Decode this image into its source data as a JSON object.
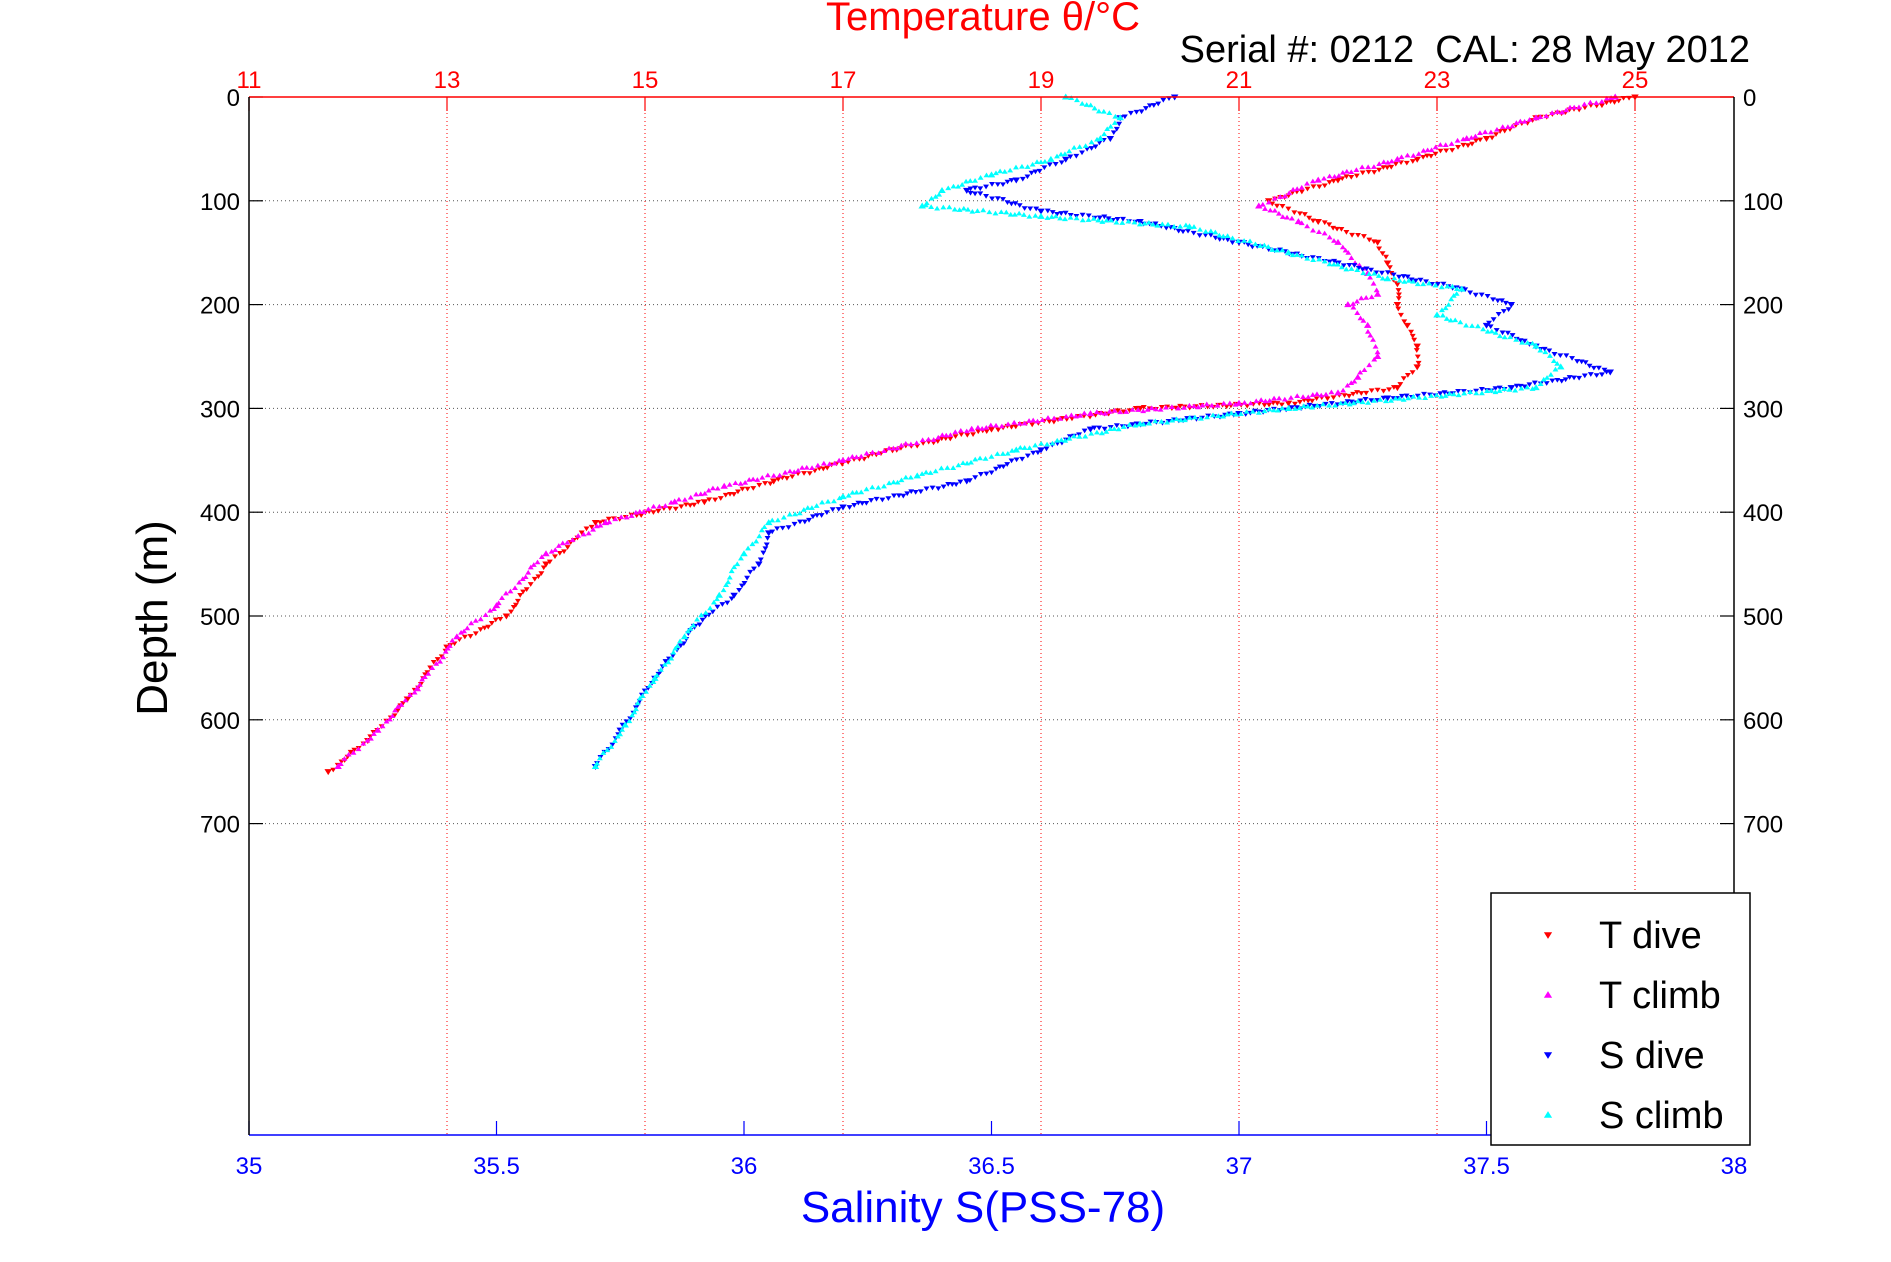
{
  "chart_data": {
    "type": "scatter",
    "title": "Temperature θ/°C",
    "subtitle": "Serial #: 0212  CAL: 28 May 2012",
    "xlabel": "Salinity S(PSS-78)",
    "ylabel": "Depth (m)",
    "ylim": [
      0,
      1000
    ],
    "ylim_reversed": true,
    "y_ticks": [
      "0",
      "100",
      "200",
      "300",
      "400",
      "500",
      "600",
      "700"
    ],
    "temperature_axis": {
      "position": "top",
      "xlim": [
        11,
        26
      ],
      "ticks": [
        "11",
        "13",
        "15",
        "17",
        "19",
        "21",
        "23",
        "25"
      ],
      "grid": true,
      "color": "#ff0000"
    },
    "salinity_axis": {
      "position": "bottom",
      "xlim": [
        35,
        38
      ],
      "ticks": [
        "35",
        "35.5",
        "36",
        "36.5",
        "37",
        "37.5",
        "38"
      ],
      "color": "#0000ff"
    },
    "depth_grid": true,
    "legend_position": "bottom-right",
    "series": [
      {
        "name": "T dive",
        "axis": "temperature",
        "color": "#ff0000",
        "marker": "triangle-down",
        "points": [
          [
            25.0,
            0
          ],
          [
            24.0,
            20
          ],
          [
            23.5,
            40
          ],
          [
            22.8,
            60
          ],
          [
            22.0,
            80
          ],
          [
            21.3,
            100
          ],
          [
            21.8,
            120
          ],
          [
            22.4,
            140
          ],
          [
            22.5,
            160
          ],
          [
            22.6,
            180
          ],
          [
            22.6,
            200
          ],
          [
            22.7,
            220
          ],
          [
            22.8,
            240
          ],
          [
            22.8,
            260
          ],
          [
            22.6,
            280
          ],
          [
            21.5,
            295
          ],
          [
            20.0,
            300
          ],
          [
            18.5,
            320
          ],
          [
            17.5,
            340
          ],
          [
            16.3,
            370
          ],
          [
            15.6,
            390
          ],
          [
            14.5,
            410
          ],
          [
            14.0,
            450
          ],
          [
            13.6,
            500
          ],
          [
            13.0,
            530
          ],
          [
            12.6,
            580
          ],
          [
            12.2,
            620
          ],
          [
            11.8,
            650
          ]
        ]
      },
      {
        "name": "T climb",
        "axis": "temperature",
        "color": "#ff00ff",
        "marker": "triangle-up",
        "points": [
          [
            24.8,
            0
          ],
          [
            24.0,
            20
          ],
          [
            23.3,
            40
          ],
          [
            22.6,
            60
          ],
          [
            21.8,
            80
          ],
          [
            21.2,
            105
          ],
          [
            21.6,
            120
          ],
          [
            22.0,
            140
          ],
          [
            22.3,
            170
          ],
          [
            22.4,
            190
          ],
          [
            22.1,
            200
          ],
          [
            22.3,
            220
          ],
          [
            22.4,
            250
          ],
          [
            22.2,
            270
          ],
          [
            22.0,
            285
          ],
          [
            21.0,
            295
          ],
          [
            19.5,
            305
          ],
          [
            18.3,
            320
          ],
          [
            17.0,
            350
          ],
          [
            15.8,
            375
          ],
          [
            15.3,
            390
          ],
          [
            14.6,
            410
          ],
          [
            14.0,
            440
          ],
          [
            13.5,
            490
          ],
          [
            13.1,
            520
          ],
          [
            12.7,
            570
          ],
          [
            12.3,
            610
          ],
          [
            11.9,
            645
          ]
        ]
      },
      {
        "name": "S dive",
        "axis": "salinity",
        "color": "#0000ff",
        "marker": "triangle-down",
        "points": [
          [
            36.87,
            0
          ],
          [
            36.76,
            20
          ],
          [
            36.74,
            40
          ],
          [
            36.65,
            60
          ],
          [
            36.55,
            80
          ],
          [
            36.45,
            90
          ],
          [
            36.6,
            110
          ],
          [
            36.8,
            120
          ],
          [
            37.0,
            140
          ],
          [
            37.2,
            160
          ],
          [
            37.45,
            185
          ],
          [
            37.55,
            200
          ],
          [
            37.5,
            220
          ],
          [
            37.6,
            240
          ],
          [
            37.75,
            265
          ],
          [
            37.55,
            280
          ],
          [
            37.3,
            290
          ],
          [
            37.0,
            305
          ],
          [
            36.7,
            320
          ],
          [
            36.6,
            340
          ],
          [
            36.45,
            370
          ],
          [
            36.2,
            395
          ],
          [
            36.05,
            420
          ],
          [
            36.03,
            450
          ],
          [
            35.98,
            480
          ],
          [
            35.9,
            510
          ],
          [
            35.82,
            560
          ],
          [
            35.75,
            610
          ],
          [
            35.7,
            645
          ]
        ]
      },
      {
        "name": "S climb",
        "axis": "salinity",
        "color": "#00ffff",
        "marker": "triangle-up",
        "points": [
          [
            36.65,
            0
          ],
          [
            36.76,
            20
          ],
          [
            36.72,
            40
          ],
          [
            36.62,
            60
          ],
          [
            36.5,
            75
          ],
          [
            36.4,
            90
          ],
          [
            36.36,
            105
          ],
          [
            36.6,
            115
          ],
          [
            36.9,
            125
          ],
          [
            37.1,
            150
          ],
          [
            37.3,
            175
          ],
          [
            37.45,
            185
          ],
          [
            37.4,
            210
          ],
          [
            37.6,
            240
          ],
          [
            37.65,
            260
          ],
          [
            37.6,
            280
          ],
          [
            37.1,
            300
          ],
          [
            36.8,
            315
          ],
          [
            36.55,
            340
          ],
          [
            36.35,
            365
          ],
          [
            36.2,
            385
          ],
          [
            36.05,
            410
          ],
          [
            36.0,
            440
          ],
          [
            35.95,
            480
          ],
          [
            35.88,
            520
          ],
          [
            35.82,
            560
          ],
          [
            35.76,
            605
          ],
          [
            35.7,
            645
          ]
        ]
      }
    ]
  }
}
